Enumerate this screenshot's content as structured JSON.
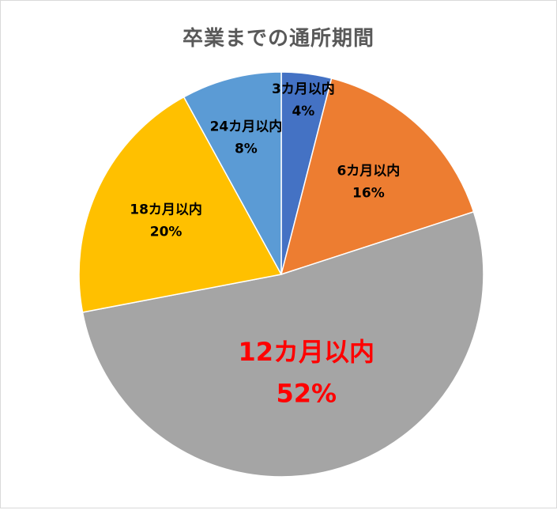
{
  "chart_data": {
    "type": "pie",
    "title": "卒業までの通所期間",
    "start_angle_deg": 0,
    "direction": "clockwise",
    "slices": [
      {
        "label": "3カ月以内",
        "value": 4,
        "display": "4%",
        "color": "#4472c4",
        "label_color": "#000000",
        "emphasis": false
      },
      {
        "label": "6カ月以内",
        "value": 16,
        "display": "16%",
        "color": "#ed7d31",
        "label_color": "#000000",
        "emphasis": false
      },
      {
        "label": "12カ月以内",
        "value": 52,
        "display": "52%",
        "color": "#a5a5a5",
        "label_color": "#ff0000",
        "emphasis": true
      },
      {
        "label": "18カ月以内",
        "value": 20,
        "display": "20%",
        "color": "#ffc000",
        "label_color": "#000000",
        "emphasis": false
      },
      {
        "label": "24カ月以内",
        "value": 8,
        "display": "8%",
        "color": "#5b9bd5",
        "label_color": "#000000",
        "emphasis": false
      }
    ]
  }
}
